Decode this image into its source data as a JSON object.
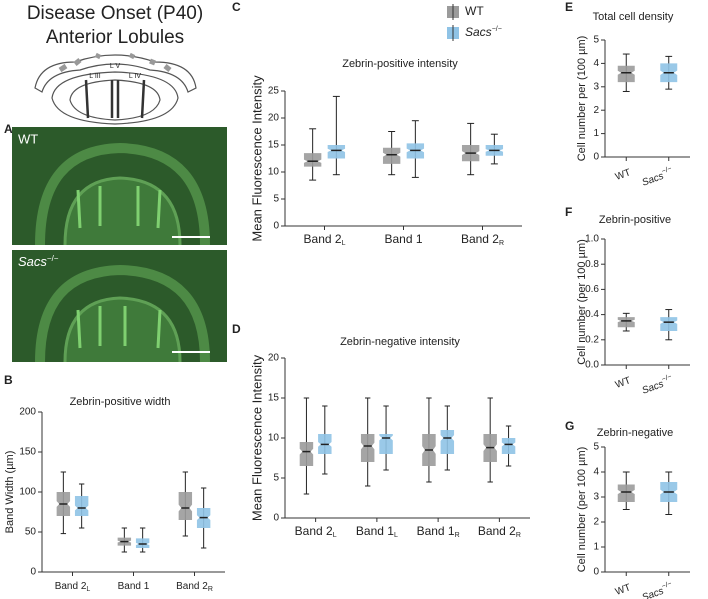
{
  "panel_a": {
    "panel": "A",
    "title": "Disease Onset (P40)",
    "subtitle": "Anterior Lobules",
    "lobules": [
      "L V",
      "L III",
      "L IV"
    ],
    "image_labels": [
      {
        "name": "WT"
      },
      {
        "name": "Sacs",
        "sup": "−/−"
      }
    ]
  },
  "chart_data": [
    {
      "type": "box",
      "panel": "B",
      "title": "Zebrin-positive width",
      "ylabel": "Band Width (µm)",
      "categories": [
        "Band 2",
        "Band 1",
        "Band 2"
      ],
      "category_subscripts": [
        "L",
        null,
        "R"
      ],
      "ylim": [
        0,
        200
      ],
      "yticks": [
        0,
        50,
        100,
        150,
        200
      ],
      "series": [
        {
          "name": "WT",
          "color": "#9b9b9b",
          "values": [
            {
              "low": 48,
              "q1": 70,
              "median": 85,
              "q3": 100,
              "high": 125
            },
            {
              "low": 25,
              "q1": 33,
              "median": 38,
              "q3": 43,
              "high": 55
            },
            {
              "low": 45,
              "q1": 65,
              "median": 80,
              "q3": 100,
              "high": 125
            }
          ]
        },
        {
          "name": "Sacs",
          "sup": "−/−",
          "italic": true,
          "color": "#8fc3e6",
          "values": [
            {
              "low": 55,
              "q1": 70,
              "median": 80,
              "q3": 95,
              "high": 110
            },
            {
              "low": 25,
              "q1": 30,
              "median": 35,
              "q3": 42,
              "high": 55
            },
            {
              "low": 30,
              "q1": 55,
              "median": 68,
              "q3": 80,
              "high": 105
            }
          ]
        }
      ]
    },
    {
      "type": "box",
      "panel": "C",
      "title": "Zebrin-positive intensity",
      "ylabel": "Mean Fluorescence Intensity",
      "legend": true,
      "categories": [
        "Band 2",
        "Band 1",
        "Band 2"
      ],
      "category_subscripts": [
        "L",
        null,
        "R"
      ],
      "ylim": [
        0,
        25
      ],
      "yticks": [
        0,
        5,
        10,
        15,
        20,
        25
      ],
      "series": [
        {
          "name": "WT",
          "color": "#9b9b9b",
          "values": [
            {
              "low": 8.5,
              "q1": 11,
              "median": 12,
              "q3": 13.5,
              "high": 18
            },
            {
              "low": 9.5,
              "q1": 11.5,
              "median": 13.2,
              "q3": 14.5,
              "high": 17.5
            },
            {
              "low": 9.5,
              "q1": 12,
              "median": 13.5,
              "q3": 15,
              "high": 19
            }
          ]
        },
        {
          "name": "Sacs",
          "sup": "−/−",
          "italic": true,
          "color": "#8fc3e6",
          "values": [
            {
              "low": 9.5,
              "q1": 12.5,
              "median": 14,
              "q3": 15,
              "high": 24
            },
            {
              "low": 9,
              "q1": 12.5,
              "median": 14,
              "q3": 15.3,
              "high": 19.5
            },
            {
              "low": 11.5,
              "q1": 13,
              "median": 14,
              "q3": 15,
              "high": 17
            }
          ]
        }
      ]
    },
    {
      "type": "box",
      "panel": "D",
      "title": "Zebrin-negative intensity",
      "ylabel": "Mean Fluorescence Intensity",
      "categories": [
        "Band 2",
        "Band 1",
        "Band 1",
        "Band 2"
      ],
      "category_subscripts": [
        "L",
        "L",
        "R",
        "R"
      ],
      "ylim": [
        0,
        20
      ],
      "yticks": [
        0,
        5,
        10,
        15,
        20
      ],
      "series": [
        {
          "name": "WT",
          "color": "#9b9b9b",
          "values": [
            {
              "low": 3,
              "q1": 6.5,
              "median": 8.3,
              "q3": 9.5,
              "high": 15
            },
            {
              "low": 4,
              "q1": 7,
              "median": 9,
              "q3": 10.5,
              "high": 15
            },
            {
              "low": 4.5,
              "q1": 6.5,
              "median": 8.5,
              "q3": 10.5,
              "high": 15
            },
            {
              "low": 4.5,
              "q1": 7,
              "median": 8.8,
              "q3": 10.5,
              "high": 15
            }
          ]
        },
        {
          "name": "Sacs",
          "sup": "−/−",
          "italic": true,
          "color": "#8fc3e6",
          "values": [
            {
              "low": 5.5,
              "q1": 8,
              "median": 9.2,
              "q3": 10.5,
              "high": 14
            },
            {
              "low": 6,
              "q1": 8,
              "median": 10,
              "q3": 10.5,
              "high": 14
            },
            {
              "low": 6,
              "q1": 8,
              "median": 10,
              "q3": 11,
              "high": 14
            },
            {
              "low": 6.5,
              "q1": 8,
              "median": 9.2,
              "q3": 10,
              "high": 11.5
            }
          ]
        }
      ]
    },
    {
      "type": "box",
      "panel": "E",
      "title": "Total cell density",
      "ylabel": "Cell number per (100 µm)",
      "ylim": [
        0,
        5
      ],
      "yticks": [
        0,
        1,
        2,
        3,
        4,
        5
      ],
      "series": [
        {
          "name": "WT",
          "color": "#9b9b9b",
          "values": [
            {
              "low": 2.8,
              "q1": 3.2,
              "median": 3.6,
              "q3": 3.9,
              "high": 4.4
            }
          ]
        },
        {
          "name": "Sacs",
          "sup": "−/−",
          "italic": true,
          "color": "#8fc3e6",
          "values": [
            {
              "low": 2.9,
              "q1": 3.2,
              "median": 3.6,
              "q3": 4.0,
              "high": 4.3
            }
          ]
        }
      ]
    },
    {
      "type": "box",
      "panel": "F",
      "title": "Zebrin-positive",
      "ylabel": "Cell number (per 100 µm)",
      "ylim": [
        0,
        1
      ],
      "yticks": [
        {
          "value": 0,
          "label": "0.0"
        },
        0.2,
        0.4,
        0.6,
        0.8,
        {
          "value": 1,
          "label": "1.0"
        }
      ],
      "series": [
        {
          "name": "WT",
          "color": "#9b9b9b",
          "values": [
            {
              "low": 0.27,
              "q1": 0.3,
              "median": 0.35,
              "q3": 0.38,
              "high": 0.41
            }
          ]
        },
        {
          "name": "Sacs",
          "sup": "−/−",
          "italic": true,
          "color": "#8fc3e6",
          "values": [
            {
              "low": 0.2,
              "q1": 0.27,
              "median": 0.34,
              "q3": 0.38,
              "high": 0.44
            }
          ]
        }
      ]
    },
    {
      "type": "box",
      "panel": "G",
      "title": "Zebrin-negative",
      "ylabel": "Cell number (per 100 µm)",
      "ylim": [
        0,
        5
      ],
      "yticks": [
        0,
        1,
        2,
        3,
        4,
        5
      ],
      "series": [
        {
          "name": "WT",
          "color": "#9b9b9b",
          "values": [
            {
              "low": 2.5,
              "q1": 2.8,
              "median": 3.2,
              "q3": 3.5,
              "high": 4
            }
          ]
        },
        {
          "name": "Sacs",
          "sup": "−/−",
          "italic": true,
          "color": "#8fc3e6",
          "values": [
            {
              "low": 2.3,
              "q1": 2.8,
              "median": 3.2,
              "q3": 3.6,
              "high": 4
            }
          ]
        }
      ]
    }
  ]
}
